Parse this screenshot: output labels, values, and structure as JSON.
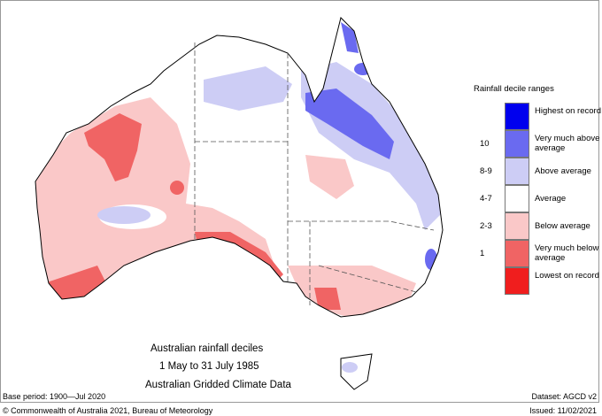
{
  "title": {
    "line1": "Australian rainfall deciles",
    "line2": "1 May to 31 July 1985",
    "line3": "Australian Gridded Climate Data"
  },
  "footer": {
    "base_period": "Base period: 1900—Jul 2020",
    "dataset": "Dataset: AGCD v2",
    "copyright": "© Commonwealth of Australia 2021, Bureau of Meteorology",
    "issued": "Issued: 11/02/2021"
  },
  "legend": {
    "title": "Rainfall decile ranges",
    "items": [
      {
        "label": "Highest on record",
        "decile": "",
        "color": "#0000ee"
      },
      {
        "label": "Very much above average",
        "decile": "10",
        "color": "#6a6af0"
      },
      {
        "label": "Above average",
        "decile": "8-9",
        "color": "#cdcdf5"
      },
      {
        "label": "Average",
        "decile": "4-7",
        "color": "#ffffff"
      },
      {
        "label": "Below average",
        "decile": "2-3",
        "color": "#fac8c8"
      },
      {
        "label": "Very much below average",
        "decile": "1",
        "color": "#f06464"
      },
      {
        "label": "Lowest on record",
        "decile": "",
        "color": "#f01e1e"
      }
    ]
  }
}
